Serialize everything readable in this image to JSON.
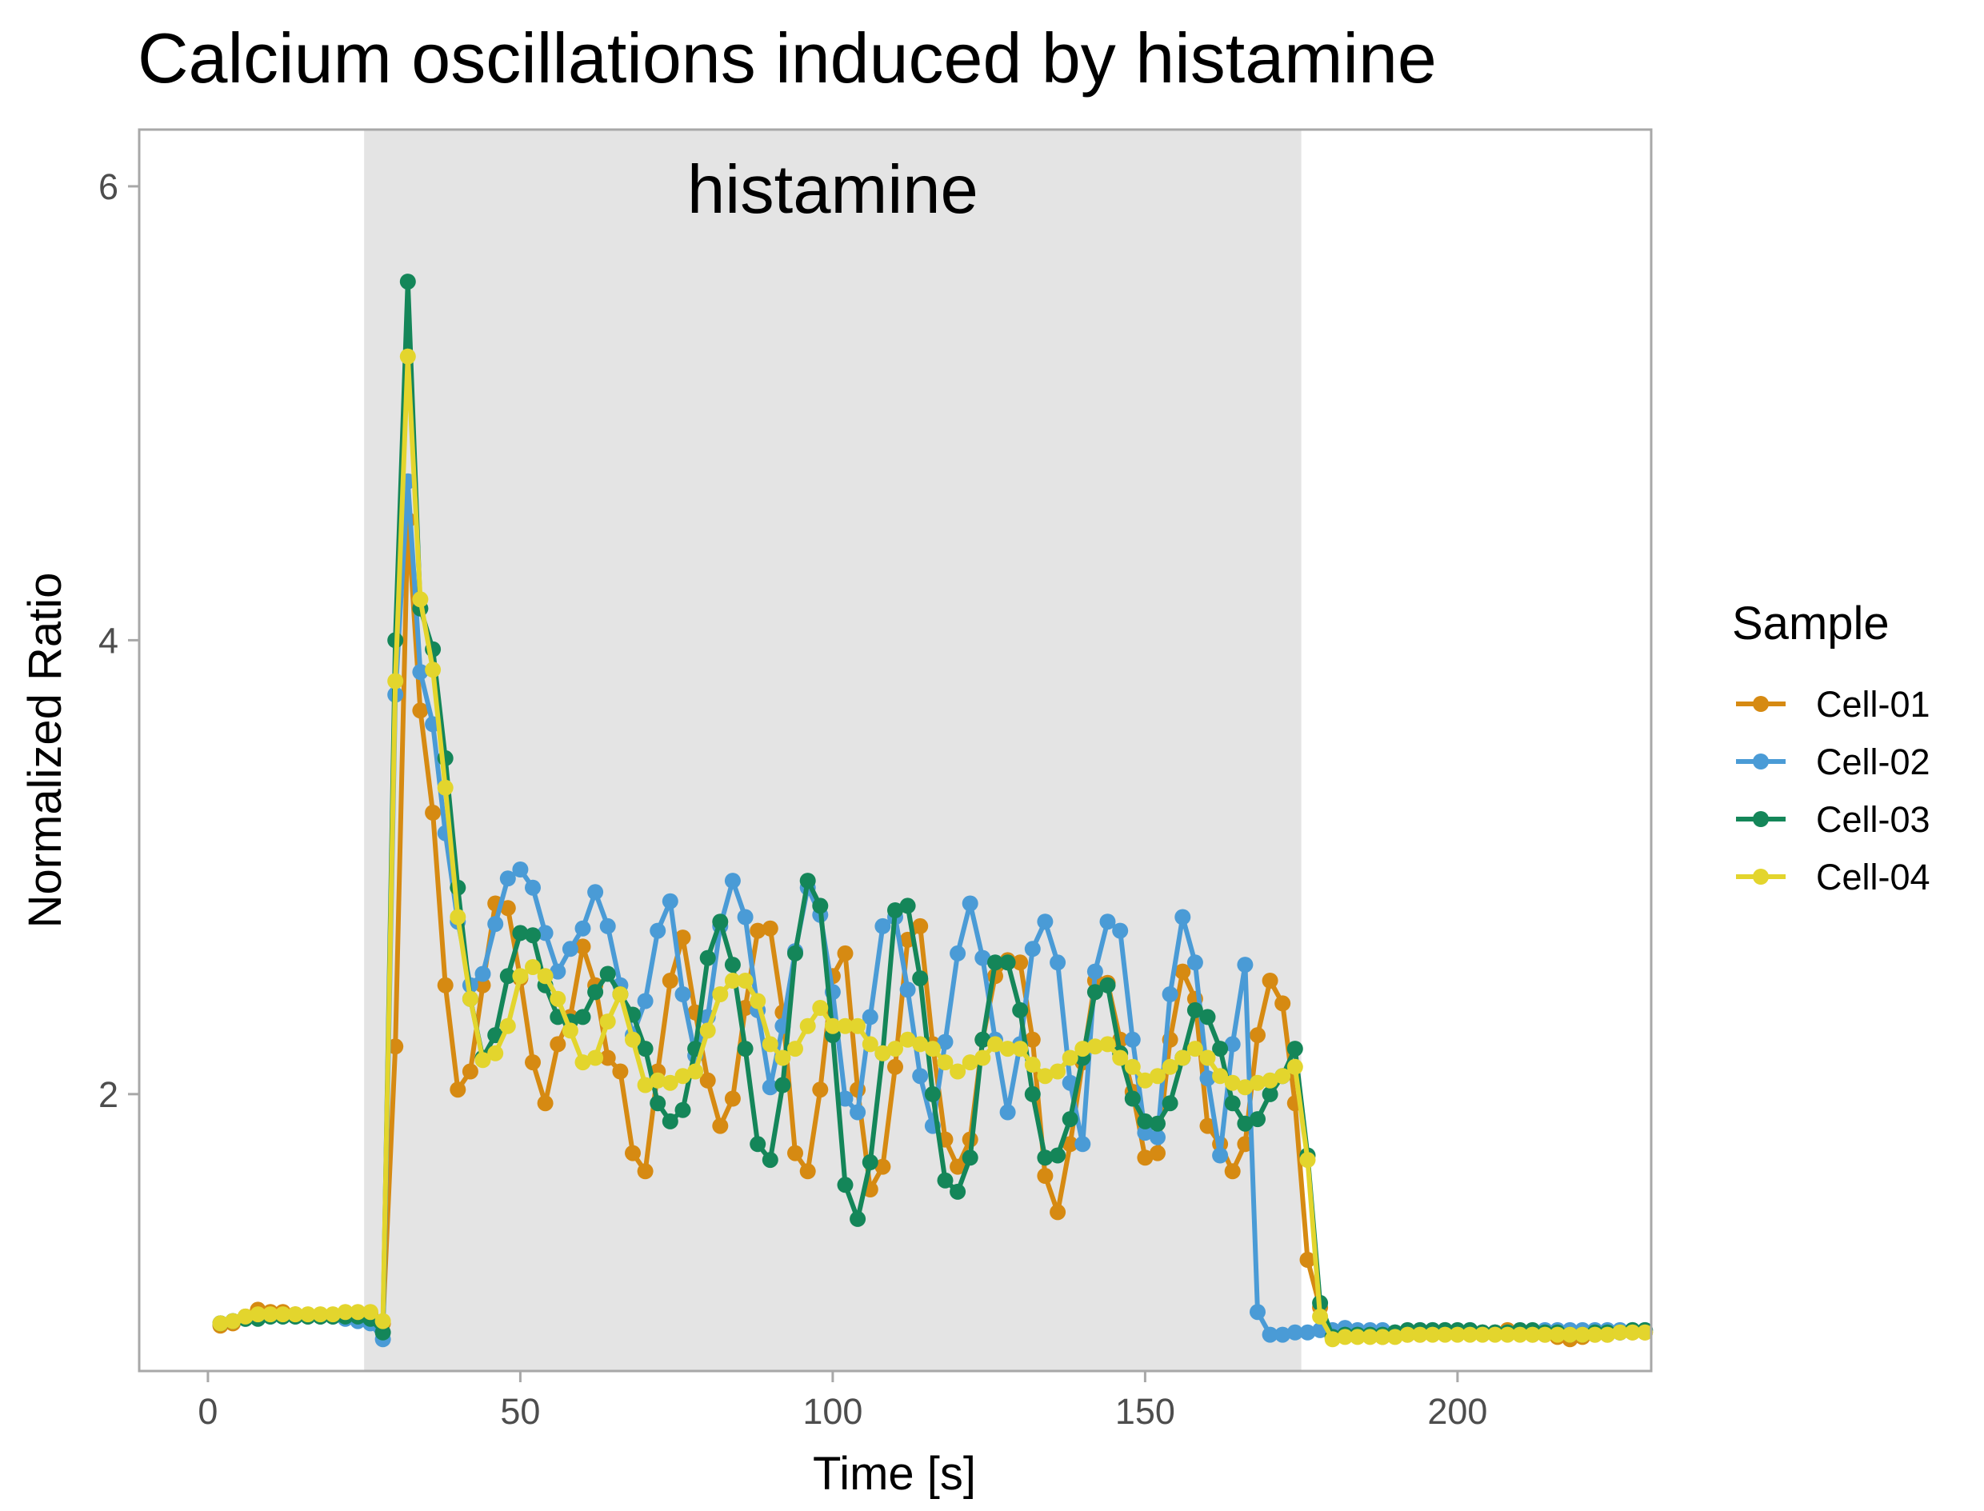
{
  "chart_data": {
    "type": "line",
    "title": "Calcium oscillations induced by histamine",
    "xlabel": "Time [s]",
    "ylabel": "Normalized Ratio",
    "xlim": [
      -11,
      231
    ],
    "ylim": [
      0.78,
      6.25
    ],
    "x_ticks": [
      0,
      50,
      100,
      150,
      200
    ],
    "y_ticks": [
      2,
      4,
      6
    ],
    "grid": false,
    "markers": true,
    "legend": {
      "title": "Sample",
      "position": "right"
    },
    "annotation": {
      "label": "histamine",
      "x_start": 25,
      "x_end": 175,
      "color": "#e4e4e4"
    },
    "x": [
      2,
      4,
      6,
      8,
      10,
      12,
      14,
      16,
      18,
      20,
      22,
      24,
      26,
      28,
      30,
      32,
      34,
      36,
      38,
      40,
      42,
      44,
      46,
      48,
      50,
      52,
      54,
      56,
      58,
      60,
      62,
      64,
      66,
      68,
      70,
      72,
      74,
      76,
      78,
      80,
      82,
      84,
      86,
      88,
      90,
      92,
      94,
      96,
      98,
      100,
      102,
      104,
      106,
      108,
      110,
      112,
      114,
      116,
      118,
      120,
      122,
      124,
      126,
      128,
      130,
      132,
      134,
      136,
      138,
      140,
      142,
      144,
      146,
      148,
      150,
      152,
      154,
      156,
      158,
      160,
      162,
      164,
      166,
      168,
      170,
      172,
      174,
      176,
      178,
      180,
      182,
      184,
      186,
      188,
      190,
      192,
      194,
      196,
      198,
      200,
      202,
      204,
      206,
      208,
      210,
      212,
      214,
      216,
      218,
      220,
      222,
      224,
      226,
      228,
      230
    ],
    "series": [
      {
        "name": "Cell-01",
        "color": "#d68a12",
        "values": [
          0.98,
          0.99,
          1.02,
          1.05,
          1.04,
          1.04,
          1.03,
          1.02,
          1.02,
          1.02,
          1.02,
          1.03,
          1.03,
          0.99,
          2.21,
          4.53,
          3.69,
          3.24,
          2.48,
          2.02,
          2.1,
          2.48,
          2.84,
          2.82,
          2.51,
          2.14,
          1.96,
          2.22,
          2.34,
          2.65,
          2.48,
          2.16,
          2.1,
          1.74,
          1.66,
          2.1,
          2.5,
          2.69,
          2.36,
          2.06,
          1.86,
          1.98,
          2.38,
          2.72,
          2.73,
          2.36,
          1.74,
          1.66,
          2.02,
          2.52,
          2.62,
          2.02,
          1.58,
          1.68,
          2.12,
          2.68,
          2.74,
          2.22,
          1.8,
          1.68,
          1.8,
          2.24,
          2.52,
          2.59,
          2.58,
          2.24,
          1.64,
          1.48,
          1.78,
          2.14,
          2.5,
          2.49,
          2.24,
          2.01,
          1.72,
          1.74,
          2.24,
          2.54,
          2.42,
          1.86,
          1.78,
          1.66,
          1.78,
          2.26,
          2.5,
          2.4,
          1.96,
          1.27,
          1.06,
          0.93,
          0.94,
          0.94,
          0.94,
          0.93,
          0.94,
          0.94,
          0.94,
          0.95,
          0.96,
          0.95,
          0.95,
          0.95,
          0.95,
          0.96,
          0.95,
          0.94,
          0.94,
          0.93,
          0.92,
          0.93,
          0.94,
          0.94,
          0.95,
          0.95,
          0.95
        ]
      },
      {
        "name": "Cell-02",
        "color": "#4a9bd6",
        "values": [
          0.99,
          1.0,
          1.01,
          1.02,
          1.02,
          1.02,
          1.02,
          1.02,
          1.02,
          1.02,
          1.01,
          1.0,
          0.99,
          0.92,
          3.76,
          4.7,
          3.86,
          3.63,
          3.15,
          2.76,
          2.48,
          2.53,
          2.75,
          2.95,
          2.99,
          2.91,
          2.71,
          2.54,
          2.64,
          2.73,
          2.89,
          2.74,
          2.48,
          2.26,
          2.41,
          2.72,
          2.85,
          2.44,
          2.17,
          2.34,
          2.74,
          2.94,
          2.78,
          2.37,
          2.03,
          2.3,
          2.63,
          2.91,
          2.79,
          2.45,
          1.98,
          1.92,
          2.34,
          2.74,
          2.78,
          2.46,
          2.08,
          1.86,
          2.23,
          2.62,
          2.84,
          2.6,
          2.24,
          1.92,
          2.22,
          2.64,
          2.76,
          2.58,
          2.05,
          1.78,
          2.54,
          2.76,
          2.72,
          2.24,
          1.83,
          1.81,
          2.44,
          2.78,
          2.58,
          2.07,
          1.73,
          2.22,
          2.57,
          1.04,
          0.94,
          0.94,
          0.95,
          0.95,
          0.96,
          0.96,
          0.97,
          0.96,
          0.96,
          0.96,
          0.95,
          0.95,
          0.96,
          0.96,
          0.96,
          0.95,
          0.96,
          0.95,
          0.95,
          0.95,
          0.95,
          0.95,
          0.96,
          0.96,
          0.96,
          0.96,
          0.96,
          0.96,
          0.96,
          0.96,
          0.96
        ]
      },
      {
        "name": "Cell-03",
        "color": "#148659",
        "values": [
          0.99,
          1.0,
          1.01,
          1.01,
          1.02,
          1.02,
          1.02,
          1.02,
          1.02,
          1.02,
          1.02,
          1.02,
          1.01,
          0.95,
          4.0,
          5.58,
          4.14,
          3.96,
          3.48,
          2.91,
          2.42,
          2.16,
          2.26,
          2.52,
          2.71,
          2.7,
          2.48,
          2.34,
          2.32,
          2.34,
          2.45,
          2.53,
          2.44,
          2.35,
          2.2,
          1.96,
          1.88,
          1.93,
          2.2,
          2.6,
          2.76,
          2.57,
          2.2,
          1.78,
          1.71,
          2.04,
          2.62,
          2.94,
          2.83,
          2.26,
          1.6,
          1.45,
          1.7,
          2.18,
          2.81,
          2.83,
          2.51,
          2.0,
          1.62,
          1.57,
          1.72,
          2.24,
          2.58,
          2.58,
          2.37,
          2.0,
          1.72,
          1.73,
          1.89,
          2.16,
          2.45,
          2.48,
          2.18,
          1.98,
          1.88,
          1.87,
          1.96,
          2.16,
          2.37,
          2.34,
          2.2,
          1.96,
          1.87,
          1.89,
          2.0,
          2.08,
          2.2,
          1.73,
          1.08,
          0.93,
          0.94,
          0.94,
          0.94,
          0.94,
          0.95,
          0.96,
          0.96,
          0.96,
          0.96,
          0.96,
          0.96,
          0.95,
          0.95,
          0.95,
          0.96,
          0.96,
          0.95,
          0.95,
          0.94,
          0.94,
          0.95,
          0.95,
          0.95,
          0.96,
          0.96
        ]
      },
      {
        "name": "Cell-04",
        "color": "#e3d52d",
        "values": [
          0.99,
          1.0,
          1.02,
          1.03,
          1.03,
          1.03,
          1.03,
          1.03,
          1.03,
          1.03,
          1.04,
          1.04,
          1.04,
          1.0,
          3.82,
          5.25,
          4.18,
          3.87,
          3.35,
          2.78,
          2.42,
          2.15,
          2.18,
          2.3,
          2.52,
          2.56,
          2.52,
          2.42,
          2.28,
          2.14,
          2.16,
          2.32,
          2.44,
          2.24,
          2.04,
          2.06,
          2.05,
          2.08,
          2.1,
          2.28,
          2.44,
          2.5,
          2.5,
          2.41,
          2.22,
          2.16,
          2.2,
          2.3,
          2.38,
          2.3,
          2.3,
          2.3,
          2.22,
          2.18,
          2.2,
          2.24,
          2.22,
          2.2,
          2.14,
          2.1,
          2.14,
          2.16,
          2.22,
          2.2,
          2.2,
          2.13,
          2.08,
          2.1,
          2.16,
          2.2,
          2.21,
          2.22,
          2.16,
          2.12,
          2.06,
          2.08,
          2.12,
          2.16,
          2.2,
          2.16,
          2.08,
          2.05,
          2.03,
          2.05,
          2.06,
          2.08,
          2.12,
          1.71,
          1.02,
          0.92,
          0.93,
          0.93,
          0.93,
          0.93,
          0.93,
          0.94,
          0.94,
          0.94,
          0.94,
          0.94,
          0.94,
          0.94,
          0.94,
          0.94,
          0.94,
          0.94,
          0.94,
          0.94,
          0.94,
          0.94,
          0.94,
          0.94,
          0.95,
          0.95,
          0.95
        ]
      }
    ]
  }
}
